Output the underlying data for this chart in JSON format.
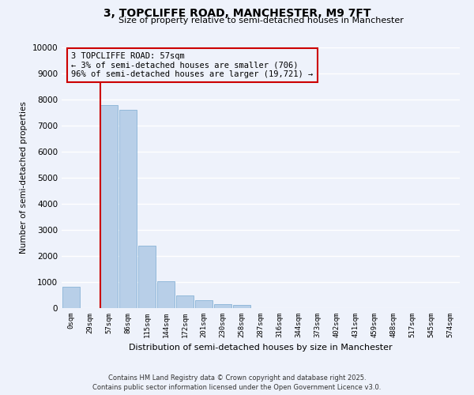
{
  "title": "3, TOPCLIFFE ROAD, MANCHESTER, M9 7FT",
  "subtitle": "Size of property relative to semi-detached houses in Manchester",
  "xlabel": "Distribution of semi-detached houses by size in Manchester",
  "ylabel": "Number of semi-detached properties",
  "bar_labels": [
    "0sqm",
    "29sqm",
    "57sqm",
    "86sqm",
    "115sqm",
    "144sqm",
    "172sqm",
    "201sqm",
    "230sqm",
    "258sqm",
    "287sqm",
    "316sqm",
    "344sqm",
    "373sqm",
    "402sqm",
    "431sqm",
    "459sqm",
    "488sqm",
    "517sqm",
    "545sqm",
    "574sqm"
  ],
  "bar_values": [
    820,
    0,
    7780,
    7600,
    2380,
    1020,
    480,
    310,
    155,
    110,
    0,
    0,
    0,
    0,
    0,
    0,
    0,
    0,
    0,
    0,
    0
  ],
  "bar_color": "#b8cfe8",
  "bar_edge_color": "#7aaad0",
  "property_line_index": 2,
  "property_label": "3 TOPCLIFFE ROAD: 57sqm",
  "smaller_pct": 3,
  "smaller_count": 706,
  "larger_pct": 96,
  "larger_count": "19,721",
  "annotation_line_color": "#cc0000",
  "annotation_box_color": "#cc0000",
  "ylim": [
    0,
    10000
  ],
  "yticks": [
    0,
    1000,
    2000,
    3000,
    4000,
    5000,
    6000,
    7000,
    8000,
    9000,
    10000
  ],
  "footer_line1": "Contains HM Land Registry data © Crown copyright and database right 2025.",
  "footer_line2": "Contains public sector information licensed under the Open Government Licence v3.0.",
  "background_color": "#eef2fb",
  "grid_color": "#ffffff"
}
